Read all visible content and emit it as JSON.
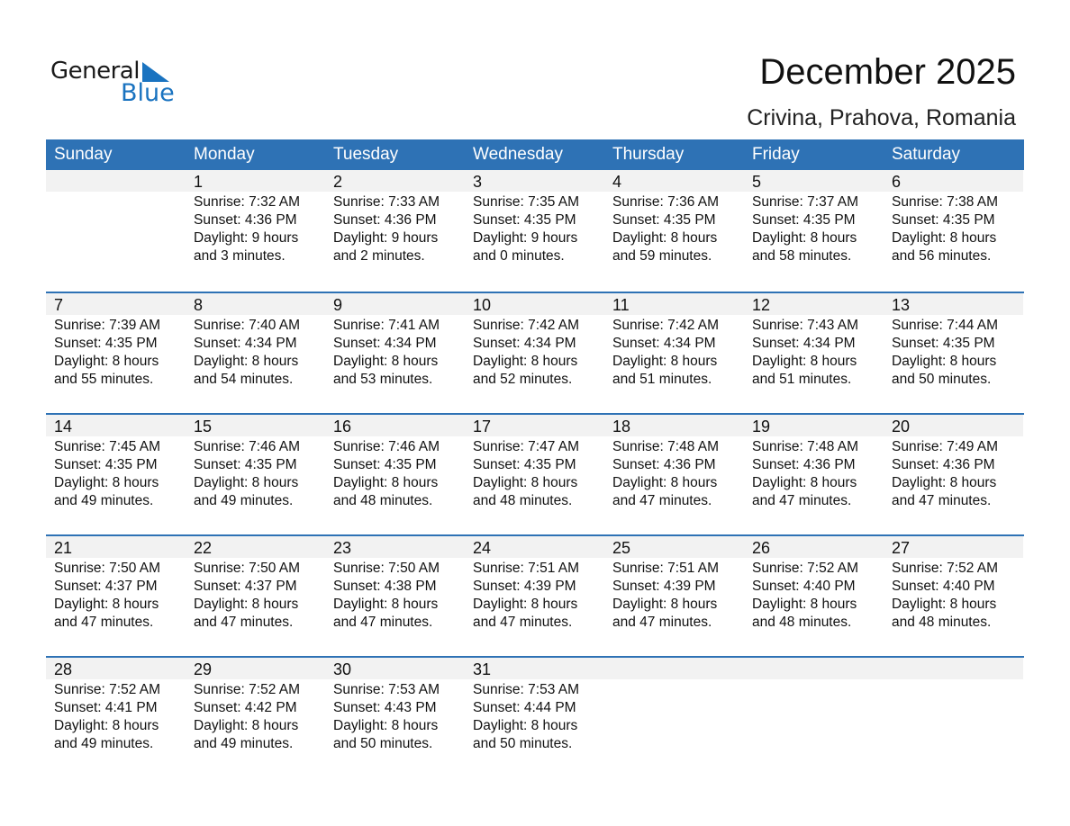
{
  "logo": {
    "text_top": "General",
    "text_bottom": "Blue",
    "color": "#1a73c0"
  },
  "title": "December 2025",
  "location": "Crivina, Prahova, Romania",
  "colors": {
    "header": "#2e72b5",
    "date_band": "#f2f2f2"
  },
  "weekdays": [
    "Sunday",
    "Monday",
    "Tuesday",
    "Wednesday",
    "Thursday",
    "Friday",
    "Saturday"
  ],
  "weeks": [
    [
      null,
      {
        "day": "1",
        "sunrise": "Sunrise: 7:32 AM",
        "sunset": "Sunset: 4:36 PM",
        "daylight": "Daylight: 9 hours",
        "minutes": "and 3 minutes."
      },
      {
        "day": "2",
        "sunrise": "Sunrise: 7:33 AM",
        "sunset": "Sunset: 4:36 PM",
        "daylight": "Daylight: 9 hours",
        "minutes": "and 2 minutes."
      },
      {
        "day": "3",
        "sunrise": "Sunrise: 7:35 AM",
        "sunset": "Sunset: 4:35 PM",
        "daylight": "Daylight: 9 hours",
        "minutes": "and 0 minutes."
      },
      {
        "day": "4",
        "sunrise": "Sunrise: 7:36 AM",
        "sunset": "Sunset: 4:35 PM",
        "daylight": "Daylight: 8 hours",
        "minutes": "and 59 minutes."
      },
      {
        "day": "5",
        "sunrise": "Sunrise: 7:37 AM",
        "sunset": "Sunset: 4:35 PM",
        "daylight": "Daylight: 8 hours",
        "minutes": "and 58 minutes."
      },
      {
        "day": "6",
        "sunrise": "Sunrise: 7:38 AM",
        "sunset": "Sunset: 4:35 PM",
        "daylight": "Daylight: 8 hours",
        "minutes": "and 56 minutes."
      }
    ],
    [
      {
        "day": "7",
        "sunrise": "Sunrise: 7:39 AM",
        "sunset": "Sunset: 4:35 PM",
        "daylight": "Daylight: 8 hours",
        "minutes": "and 55 minutes."
      },
      {
        "day": "8",
        "sunrise": "Sunrise: 7:40 AM",
        "sunset": "Sunset: 4:34 PM",
        "daylight": "Daylight: 8 hours",
        "minutes": "and 54 minutes."
      },
      {
        "day": "9",
        "sunrise": "Sunrise: 7:41 AM",
        "sunset": "Sunset: 4:34 PM",
        "daylight": "Daylight: 8 hours",
        "minutes": "and 53 minutes."
      },
      {
        "day": "10",
        "sunrise": "Sunrise: 7:42 AM",
        "sunset": "Sunset: 4:34 PM",
        "daylight": "Daylight: 8 hours",
        "minutes": "and 52 minutes."
      },
      {
        "day": "11",
        "sunrise": "Sunrise: 7:42 AM",
        "sunset": "Sunset: 4:34 PM",
        "daylight": "Daylight: 8 hours",
        "minutes": "and 51 minutes."
      },
      {
        "day": "12",
        "sunrise": "Sunrise: 7:43 AM",
        "sunset": "Sunset: 4:34 PM",
        "daylight": "Daylight: 8 hours",
        "minutes": "and 51 minutes."
      },
      {
        "day": "13",
        "sunrise": "Sunrise: 7:44 AM",
        "sunset": "Sunset: 4:35 PM",
        "daylight": "Daylight: 8 hours",
        "minutes": "and 50 minutes."
      }
    ],
    [
      {
        "day": "14",
        "sunrise": "Sunrise: 7:45 AM",
        "sunset": "Sunset: 4:35 PM",
        "daylight": "Daylight: 8 hours",
        "minutes": "and 49 minutes."
      },
      {
        "day": "15",
        "sunrise": "Sunrise: 7:46 AM",
        "sunset": "Sunset: 4:35 PM",
        "daylight": "Daylight: 8 hours",
        "minutes": "and 49 minutes."
      },
      {
        "day": "16",
        "sunrise": "Sunrise: 7:46 AM",
        "sunset": "Sunset: 4:35 PM",
        "daylight": "Daylight: 8 hours",
        "minutes": "and 48 minutes."
      },
      {
        "day": "17",
        "sunrise": "Sunrise: 7:47 AM",
        "sunset": "Sunset: 4:35 PM",
        "daylight": "Daylight: 8 hours",
        "minutes": "and 48 minutes."
      },
      {
        "day": "18",
        "sunrise": "Sunrise: 7:48 AM",
        "sunset": "Sunset: 4:36 PM",
        "daylight": "Daylight: 8 hours",
        "minutes": "and 47 minutes."
      },
      {
        "day": "19",
        "sunrise": "Sunrise: 7:48 AM",
        "sunset": "Sunset: 4:36 PM",
        "daylight": "Daylight: 8 hours",
        "minutes": "and 47 minutes."
      },
      {
        "day": "20",
        "sunrise": "Sunrise: 7:49 AM",
        "sunset": "Sunset: 4:36 PM",
        "daylight": "Daylight: 8 hours",
        "minutes": "and 47 minutes."
      }
    ],
    [
      {
        "day": "21",
        "sunrise": "Sunrise: 7:50 AM",
        "sunset": "Sunset: 4:37 PM",
        "daylight": "Daylight: 8 hours",
        "minutes": "and 47 minutes."
      },
      {
        "day": "22",
        "sunrise": "Sunrise: 7:50 AM",
        "sunset": "Sunset: 4:37 PM",
        "daylight": "Daylight: 8 hours",
        "minutes": "and 47 minutes."
      },
      {
        "day": "23",
        "sunrise": "Sunrise: 7:50 AM",
        "sunset": "Sunset: 4:38 PM",
        "daylight": "Daylight: 8 hours",
        "minutes": "and 47 minutes."
      },
      {
        "day": "24",
        "sunrise": "Sunrise: 7:51 AM",
        "sunset": "Sunset: 4:39 PM",
        "daylight": "Daylight: 8 hours",
        "minutes": "and 47 minutes."
      },
      {
        "day": "25",
        "sunrise": "Sunrise: 7:51 AM",
        "sunset": "Sunset: 4:39 PM",
        "daylight": "Daylight: 8 hours",
        "minutes": "and 47 minutes."
      },
      {
        "day": "26",
        "sunrise": "Sunrise: 7:52 AM",
        "sunset": "Sunset: 4:40 PM",
        "daylight": "Daylight: 8 hours",
        "minutes": "and 48 minutes."
      },
      {
        "day": "27",
        "sunrise": "Sunrise: 7:52 AM",
        "sunset": "Sunset: 4:40 PM",
        "daylight": "Daylight: 8 hours",
        "minutes": "and 48 minutes."
      }
    ],
    [
      {
        "day": "28",
        "sunrise": "Sunrise: 7:52 AM",
        "sunset": "Sunset: 4:41 PM",
        "daylight": "Daylight: 8 hours",
        "minutes": "and 49 minutes."
      },
      {
        "day": "29",
        "sunrise": "Sunrise: 7:52 AM",
        "sunset": "Sunset: 4:42 PM",
        "daylight": "Daylight: 8 hours",
        "minutes": "and 49 minutes."
      },
      {
        "day": "30",
        "sunrise": "Sunrise: 7:53 AM",
        "sunset": "Sunset: 4:43 PM",
        "daylight": "Daylight: 8 hours",
        "minutes": "and 50 minutes."
      },
      {
        "day": "31",
        "sunrise": "Sunrise: 7:53 AM",
        "sunset": "Sunset: 4:44 PM",
        "daylight": "Daylight: 8 hours",
        "minutes": "and 50 minutes."
      },
      null,
      null,
      null
    ]
  ]
}
